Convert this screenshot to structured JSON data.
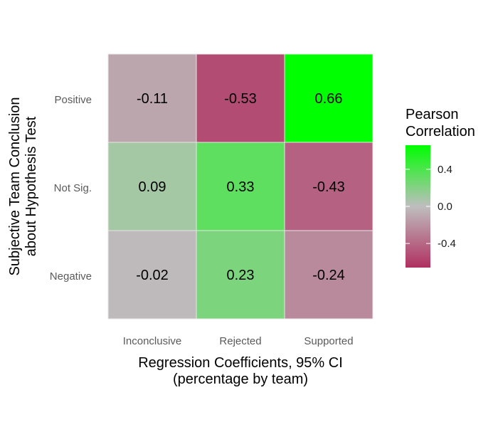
{
  "chart_data": {
    "type": "heatmap",
    "title": "",
    "xlabel": [
      "Regression Coefficients, 95% CI",
      "(percentage by team)"
    ],
    "ylabel": [
      "Subjective Team Conclusion",
      "about Hypothesis Test"
    ],
    "x_categories": [
      "Inconclusive",
      "Rejected",
      "Supported"
    ],
    "y_categories": [
      "Positive",
      "Not Sig.",
      "Negative"
    ],
    "values": [
      [
        -0.11,
        -0.53,
        0.66
      ],
      [
        0.09,
        0.33,
        -0.43
      ],
      [
        -0.02,
        0.23,
        -0.24
      ]
    ],
    "value_labels": [
      [
        "-0.11",
        "-0.53",
        "0.66"
      ],
      [
        "0.09",
        "0.33",
        "-0.43"
      ],
      [
        "-0.02",
        "0.23",
        "-0.24"
      ]
    ],
    "legend": {
      "title": [
        "Pearson",
        "Correlation"
      ],
      "placement": "right",
      "ticks": [
        "0.4",
        "0.0",
        "-0.4"
      ],
      "range": [
        -0.66,
        0.66
      ],
      "colors": {
        "low": "#b03060",
        "mid": "#bebebe",
        "high": "#00ff00"
      }
    }
  }
}
